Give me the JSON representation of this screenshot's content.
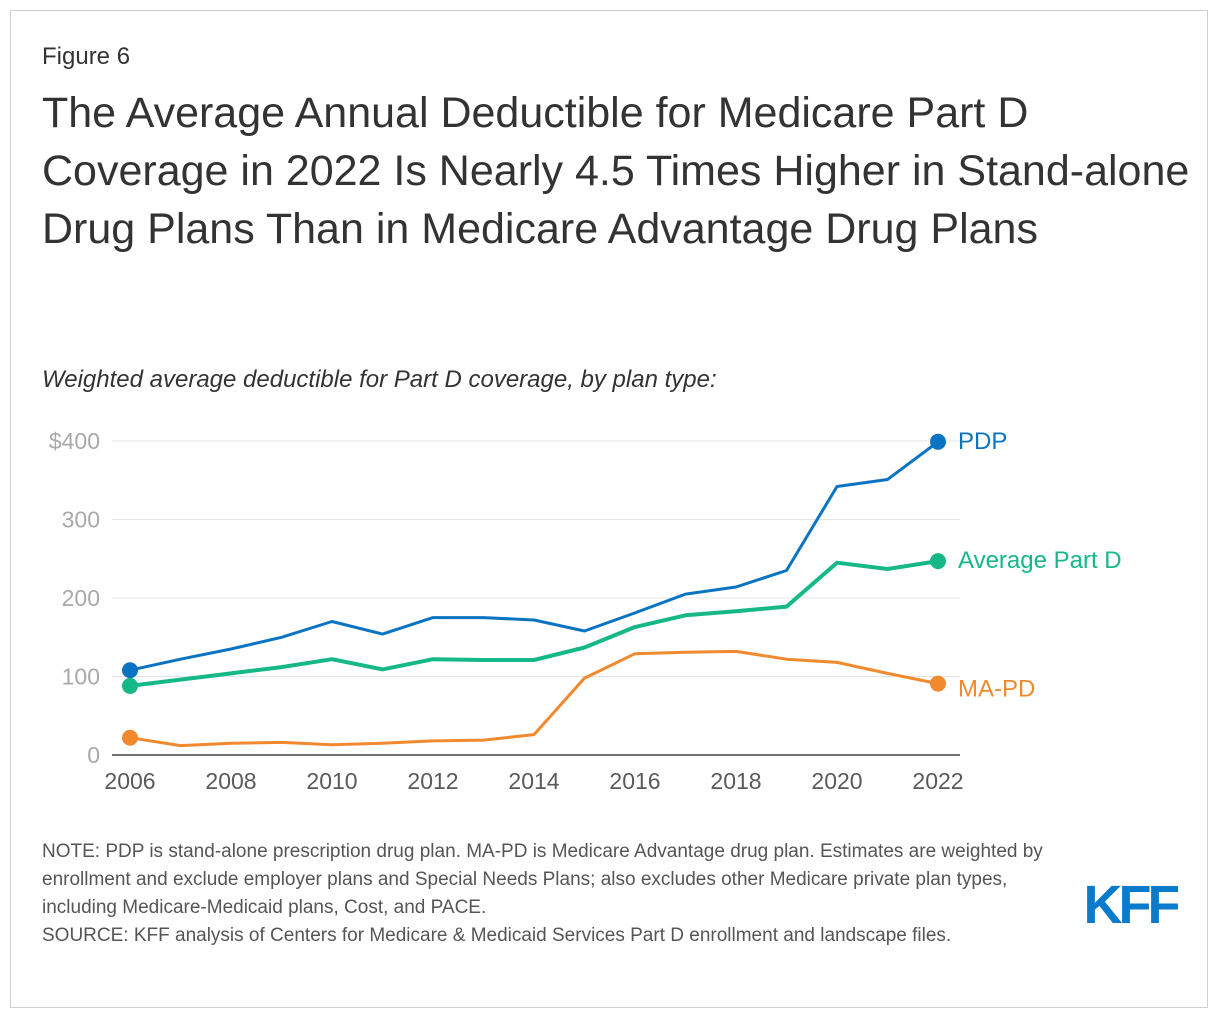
{
  "figure_label": "Figure 6",
  "title": "The Average Annual Deductible for Medicare Part D Coverage in 2022 Is Nearly 4.5 Times Higher in Stand-alone Drug Plans Than in Medicare Advantage Drug Plans",
  "subtitle": "Weighted average deductible for Part D coverage, by plan type:",
  "note": "NOTE: PDP is stand-alone prescription drug plan. MA-PD is Medicare Advantage drug plan. Estimates are weighted by enrollment and exclude employer plans and Special Needs Plans; also excludes other Medicare private plan types, including Medicare-Medicaid plans, Cost, and PACE.",
  "source": "SOURCE: KFF analysis of Centers for Medicare & Medicaid Services Part D enrollment and landscape files.",
  "logo": {
    "text": "KFF",
    "color": "#0a7acc"
  },
  "chart_data": {
    "type": "line",
    "title": "Weighted average deductible for Part D coverage, by plan type:",
    "xlabel": "",
    "ylabel": "",
    "x": [
      2006,
      2007,
      2008,
      2009,
      2010,
      2011,
      2012,
      2013,
      2014,
      2015,
      2016,
      2017,
      2018,
      2019,
      2020,
      2021,
      2022
    ],
    "xticks": [
      "2006",
      "2008",
      "2010",
      "2012",
      "2014",
      "2016",
      "2018",
      "2020",
      "2022"
    ],
    "xtick_values": [
      2006,
      2008,
      2010,
      2012,
      2014,
      2016,
      2018,
      2020,
      2022
    ],
    "yticks": [
      "0",
      "100",
      "200",
      "300",
      "$400"
    ],
    "ytick_values": [
      0,
      100,
      200,
      300,
      400
    ],
    "ylim": [
      0,
      400
    ],
    "xlim": [
      2006,
      2022
    ],
    "grid": true,
    "series": [
      {
        "name": "PDP",
        "color": "#0a74c2",
        "values": [
          108,
          122,
          135,
          150,
          170,
          154,
          175,
          175,
          172,
          158,
          181,
          205,
          214,
          235,
          342,
          351,
          399
        ]
      },
      {
        "name": "Average Part D",
        "color": "#16b888",
        "values": [
          88,
          96,
          104,
          112,
          122,
          109,
          122,
          121,
          121,
          137,
          163,
          178,
          183,
          189,
          245,
          237,
          247
        ]
      },
      {
        "name": "MA-PD",
        "color": "#f18a2e",
        "values": [
          22,
          12,
          15,
          16,
          13,
          15,
          18,
          19,
          26,
          98,
          129,
          131,
          132,
          122,
          118,
          104,
          91
        ]
      }
    ]
  }
}
